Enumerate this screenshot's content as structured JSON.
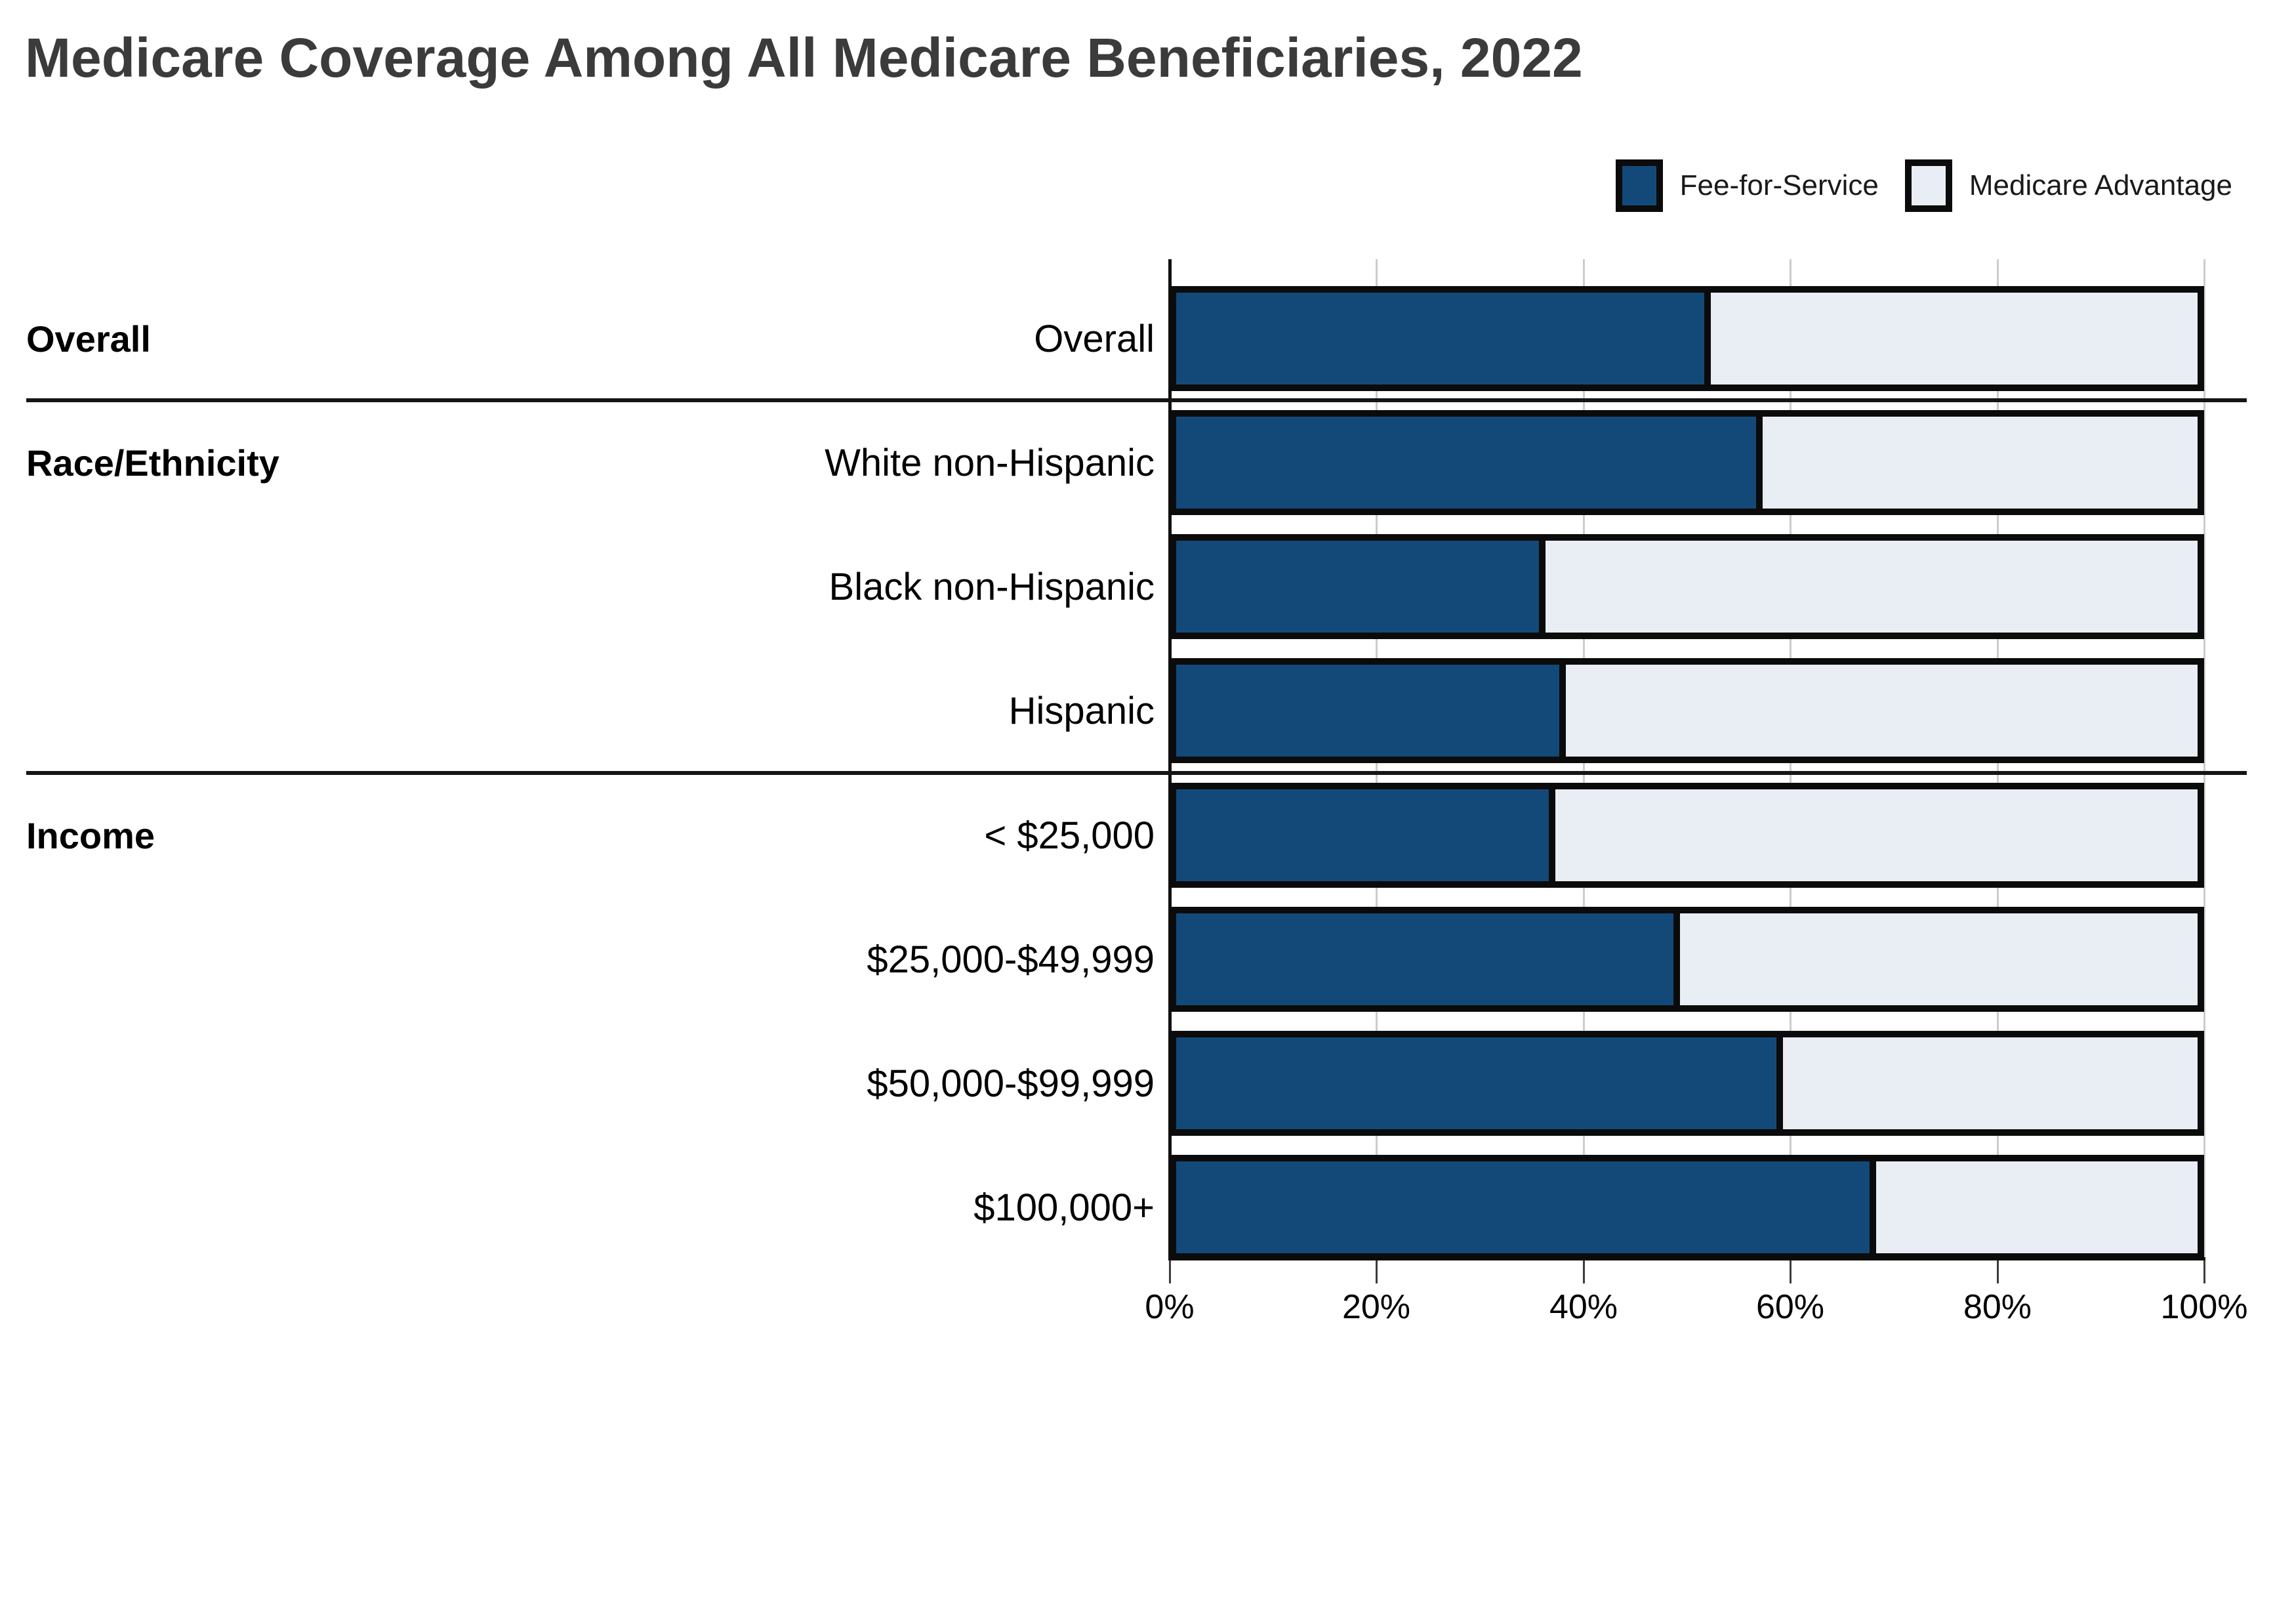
{
  "title": "Medicare Coverage Among All Medicare Beneficiaries, 2022",
  "legend": {
    "items": [
      {
        "key": "ffs",
        "label": "Fee-for-Service"
      },
      {
        "key": "ma",
        "label": "Medicare Advantage"
      }
    ]
  },
  "colors": {
    "ffs": "#134979",
    "ma": "#e9edf4",
    "bar_border": "#0b0b0b",
    "gridline": "#cccccc",
    "axis": "#111111",
    "title_text": "#3b3b3b"
  },
  "axis": {
    "tick_values": [
      0,
      20,
      40,
      60,
      80,
      100
    ],
    "tick_labels": [
      "0%",
      "20%",
      "40%",
      "60%",
      "80%",
      "100%"
    ]
  },
  "chart_data": {
    "type": "bar",
    "orientation": "horizontal",
    "stacked": true,
    "title": "Medicare Coverage Among All Medicare Beneficiaries, 2022",
    "series_names": [
      "Fee-for-Service",
      "Medicare Advantage"
    ],
    "xlim": [
      0,
      100
    ],
    "x_tick_labels": [
      "0%",
      "20%",
      "40%",
      "60%",
      "80%",
      "100%"
    ],
    "grid": "vertical",
    "legend_position": "top-right",
    "groups": [
      {
        "group": "Overall",
        "rows": [
          {
            "label": "Overall",
            "ffs": 52,
            "ma": 48
          }
        ]
      },
      {
        "group": "Race/Ethnicity",
        "rows": [
          {
            "label": "White non-Hispanic",
            "ffs": 57,
            "ma": 43
          },
          {
            "label": "Black non-Hispanic",
            "ffs": 36,
            "ma": 64
          },
          {
            "label": "Hispanic",
            "ffs": 38,
            "ma": 62
          }
        ]
      },
      {
        "group": "Income",
        "rows": [
          {
            "label": "< $25,000",
            "ffs": 37,
            "ma": 63
          },
          {
            "label": "$25,000-$49,999",
            "ffs": 49,
            "ma": 51
          },
          {
            "label": "$50,000-$99,999",
            "ffs": 59,
            "ma": 41
          },
          {
            "label": "$100,000+",
            "ffs": 68,
            "ma": 32
          }
        ]
      }
    ]
  }
}
